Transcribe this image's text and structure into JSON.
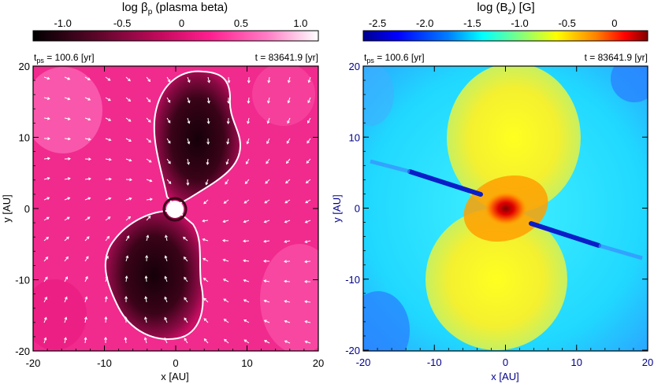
{
  "left_panel": {
    "colorbar": {
      "title_main": "log β",
      "title_sub": "p",
      "title_rest": " (plasma beta)",
      "ticks": [
        "-1.0",
        "-0.5",
        "0",
        "0.5",
        "1.0"
      ],
      "tick_values": [
        -1.0,
        -0.5,
        0,
        0.5,
        1.0
      ],
      "range": [
        -1.25,
        1.15
      ],
      "colors": {
        "low": "#000000",
        "mid": "#ff1493",
        "high": "#ffffff"
      }
    },
    "time_ps_prefix": "t",
    "time_ps_sub": "ps",
    "time_ps_value": " = 100.6 [yr]",
    "time_total": "t = 83641.9 [yr]",
    "xlabel": "x [AU]",
    "ylabel": "y [AU]",
    "xticks": [
      "-20",
      "-10",
      "0",
      "10",
      "20"
    ],
    "yticks": [
      "20",
      "10",
      "0",
      "-10",
      "-20"
    ],
    "axis_range": [
      -20,
      20
    ]
  },
  "right_panel": {
    "colorbar": {
      "title": "log (B",
      "title_sub": "z",
      "title_rest": ")  [G]",
      "ticks": [
        "-2.5",
        "-2.0",
        "-1.5",
        "-1.0",
        "-0.5",
        "0"
      ],
      "tick_values": [
        -2.5,
        -2.0,
        -1.5,
        -1.0,
        -0.5,
        0
      ],
      "range": [
        -2.65,
        0.35
      ]
    },
    "time_ps_prefix": "t",
    "time_ps_sub": "ps",
    "time_ps_value": " = 100.6 [yr]",
    "time_total": "t = 83641.9 [yr]",
    "xlabel": "x [AU]",
    "ylabel": "y [AU]",
    "xticks": [
      "-20",
      "-10",
      "0",
      "10",
      "20"
    ],
    "yticks": [
      "20",
      "10",
      "0",
      "-10",
      "-20"
    ],
    "axis_range": [
      -20,
      20
    ],
    "axis_color": "#00008b"
  }
}
